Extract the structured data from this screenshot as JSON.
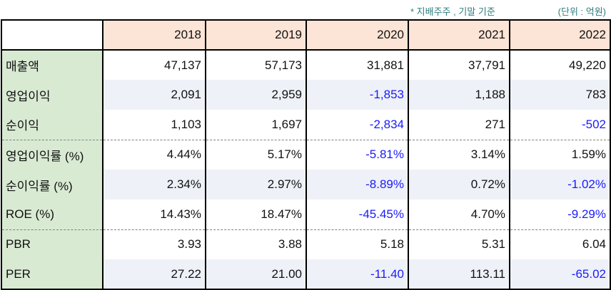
{
  "notes": {
    "owner_basis": "* 지배주주 , 기말 기준",
    "unit": "(단위 : 억원)"
  },
  "colors": {
    "header_bg": "#fce4d6",
    "label_bg": "#d9ead3",
    "alt_row_bg": "#eef1f7",
    "negative_text": "#1a1aff",
    "note_text": "#2e7d7d"
  },
  "table": {
    "corner": "",
    "years": [
      "2018",
      "2019",
      "2020",
      "2021",
      "2022"
    ],
    "rows": [
      {
        "label": "매출액",
        "values": [
          "47,137",
          "57,173",
          "31,881",
          "37,791",
          "49,220"
        ]
      },
      {
        "label": "영업이익",
        "values": [
          "2,091",
          "2,959",
          "-1,853",
          "1,188",
          "783"
        ]
      },
      {
        "label": "순이익",
        "values": [
          "1,103",
          "1,697",
          "-2,834",
          "271",
          "-502"
        ]
      },
      {
        "label": "영업이익률 (%)",
        "values": [
          "4.44%",
          "5.17%",
          "-5.81%",
          "3.14%",
          "1.59%"
        ]
      },
      {
        "label": "순이익률 (%)",
        "values": [
          "2.34%",
          "2.97%",
          "-8.89%",
          "0.72%",
          "-1.02%"
        ]
      },
      {
        "label": "ROE (%)",
        "values": [
          "14.43%",
          "18.47%",
          "-45.45%",
          "4.70%",
          "-9.29%"
        ]
      },
      {
        "label": "PBR",
        "values": [
          "3.93",
          "3.88",
          "5.18",
          "5.31",
          "6.04"
        ]
      },
      {
        "label": "PER",
        "values": [
          "27.22",
          "21.00",
          "-11.40",
          "113.11",
          "-65.02"
        ]
      }
    ]
  }
}
